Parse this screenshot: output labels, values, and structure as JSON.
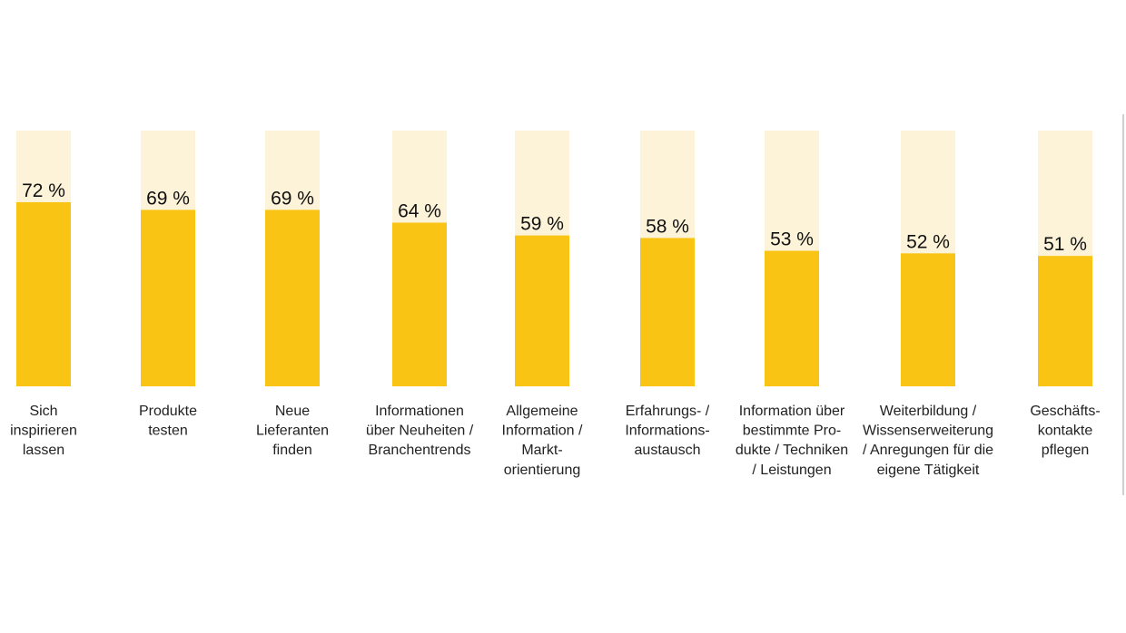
{
  "chart_data": {
    "type": "bar",
    "categories": [
      [
        "Sich",
        "inspirieren",
        "lassen"
      ],
      [
        "Produkte",
        "testen"
      ],
      [
        "Neue",
        "Lieferanten",
        "finden"
      ],
      [
        "Informationen",
        "über Neuheiten /",
        "Branchentrends"
      ],
      [
        "Allgemeine",
        "Information /",
        "Markt-",
        "orientierung"
      ],
      [
        "Erfahrungs- /",
        "Informations-",
        "austausch"
      ],
      [
        "Information über",
        "bestimmte Pro-",
        "dukte / Techniken",
        "/ Leistungen"
      ],
      [
        "Weiterbildung /",
        "Wissenserweiterung",
        "/ Anregungen für die",
        "eigene Tätigkeit"
      ],
      [
        "Geschäfts-",
        "kontakte",
        "pflegen"
      ]
    ],
    "values": [
      72,
      69,
      69,
      64,
      59,
      58,
      53,
      52,
      51
    ],
    "value_labels": [
      "72 %",
      "69 %",
      "69 %",
      "64 %",
      "59 %",
      "58 %",
      "53 %",
      "52 %",
      "51 %"
    ],
    "ylim": [
      0,
      100
    ],
    "grid": false,
    "legend": "none",
    "colors": {
      "bar": "#FAC415",
      "track": "#FDF3D9"
    }
  }
}
